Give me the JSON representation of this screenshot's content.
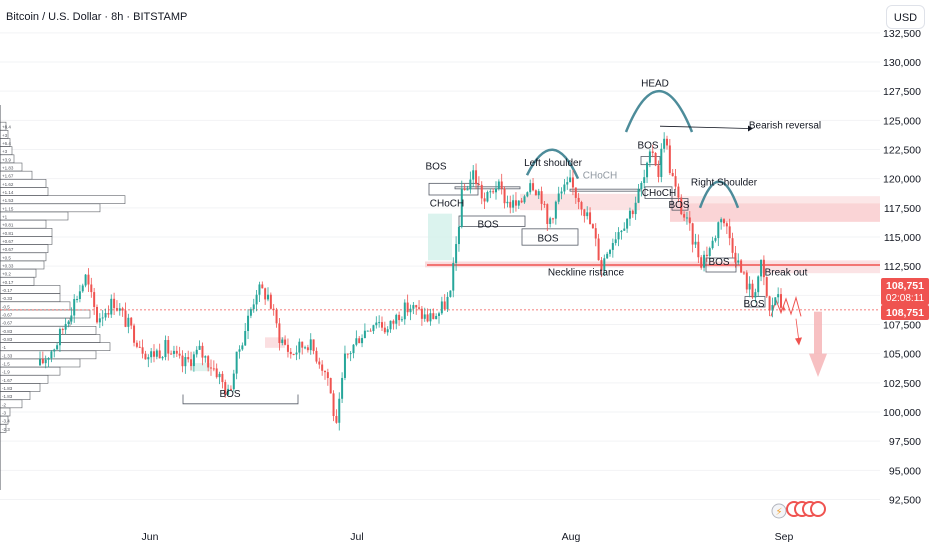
{
  "header": {
    "title": "Bitcoin / U.S. Dollar · 8h · BITSTAMP",
    "currency_button": "USD"
  },
  "price_labels": {
    "last_price": "108,751",
    "countdown": "02:08:11",
    "second_price": "108,751"
  },
  "colors": {
    "up": "#26a69a",
    "down": "#ef5350",
    "pattern": "#4d8c9a",
    "resistance": "#ef5350",
    "zone": "#f9c9cc",
    "vp_bar": "#d7dadf"
  },
  "chart_data": {
    "type": "candlestick",
    "symbol": "Bitcoin / U.S. Dollar",
    "timeframe": "8h",
    "exchange": "BITSTAMP",
    "x_ticks": [
      "Jun",
      "Jul",
      "Aug",
      "Sep"
    ],
    "y_ticks": [
      92500,
      95000,
      97500,
      100000,
      102500,
      105000,
      107500,
      110000,
      112500,
      115000,
      117500,
      120000,
      122500,
      125000,
      127500,
      130000,
      132500
    ],
    "ylim": [
      91000,
      133500
    ],
    "last_price": 108751,
    "price_path": [
      [
        0,
        104000
      ],
      [
        6,
        106000
      ],
      [
        12,
        109500
      ],
      [
        16,
        111500
      ],
      [
        20,
        108000
      ],
      [
        26,
        109500
      ],
      [
        32,
        107000
      ],
      [
        38,
        104800
      ],
      [
        44,
        105500
      ],
      [
        50,
        104000
      ],
      [
        56,
        105200
      ],
      [
        62,
        103500
      ],
      [
        66,
        101500
      ],
      [
        70,
        105500
      ],
      [
        76,
        110500
      ],
      [
        80,
        110000
      ],
      [
        84,
        106500
      ],
      [
        88,
        105000
      ],
      [
        94,
        106000
      ],
      [
        98,
        104500
      ],
      [
        101,
        103000
      ],
      [
        104,
        98500
      ],
      [
        107,
        104500
      ],
      [
        112,
        106500
      ],
      [
        118,
        108000
      ],
      [
        122,
        107000
      ],
      [
        126,
        108500
      ],
      [
        130,
        109000
      ],
      [
        136,
        108000
      ],
      [
        140,
        108500
      ],
      [
        144,
        110000
      ],
      [
        148,
        118500
      ],
      [
        152,
        120500
      ],
      [
        156,
        118000
      ],
      [
        160,
        119500
      ],
      [
        164,
        118000
      ],
      [
        168,
        117500
      ],
      [
        172,
        120000
      ],
      [
        176,
        118500
      ],
      [
        178,
        116000
      ],
      [
        182,
        118500
      ],
      [
        186,
        119500
      ],
      [
        190,
        118000
      ],
      [
        194,
        115500
      ],
      [
        197,
        112500
      ],
      [
        200,
        114500
      ],
      [
        204,
        116000
      ],
      [
        208,
        117500
      ],
      [
        212,
        120000
      ],
      [
        215,
        122500
      ],
      [
        217,
        120500
      ],
      [
        219,
        124000
      ],
      [
        221,
        121000
      ],
      [
        224,
        118000
      ],
      [
        228,
        115500
      ],
      [
        232,
        113000
      ],
      [
        236,
        114500
      ],
      [
        239,
        117000
      ],
      [
        242,
        115000
      ],
      [
        246,
        112000
      ],
      [
        250,
        110000
      ],
      [
        253,
        112500
      ],
      [
        256,
        108500
      ],
      [
        258,
        110000
      ],
      [
        261,
        108751
      ]
    ],
    "volume_profile": [
      {
        "price": 124500,
        "label": "+8.4",
        "width": 6
      },
      {
        "price": 123800,
        "label": "+3",
        "width": 8
      },
      {
        "price": 123100,
        "label": "+6.4",
        "width": 10
      },
      {
        "price": 122400,
        "label": "+3",
        "width": 12
      },
      {
        "price": 121700,
        "label": "+3.9",
        "width": 14
      },
      {
        "price": 121000,
        "label": "+1.83",
        "width": 22
      },
      {
        "price": 120300,
        "label": "+1.67",
        "width": 32
      },
      {
        "price": 119600,
        "label": "+1.62",
        "width": 46
      },
      {
        "price": 118900,
        "label": "+1.14",
        "width": 48
      },
      {
        "price": 118200,
        "label": "+1.53",
        "width": 125
      },
      {
        "price": 117500,
        "label": "+1.15",
        "width": 100
      },
      {
        "price": 116800,
        "label": "+1",
        "width": 68
      },
      {
        "price": 116100,
        "label": "+0.81",
        "width": 46
      },
      {
        "price": 115400,
        "label": "+0.81",
        "width": 52
      },
      {
        "price": 114700,
        "label": "+0.67",
        "width": 52
      },
      {
        "price": 114000,
        "label": "+0.67",
        "width": 48
      },
      {
        "price": 113300,
        "label": "+0.5",
        "width": 46
      },
      {
        "price": 112600,
        "label": "+0.33",
        "width": 44
      },
      {
        "price": 111900,
        "label": "+0.2",
        "width": 36
      },
      {
        "price": 111200,
        "label": "+0.17",
        "width": 34
      },
      {
        "price": 110500,
        "label": "-0.17",
        "width": 60
      },
      {
        "price": 109800,
        "label": "-0.33",
        "width": 60
      },
      {
        "price": 109100,
        "label": "-0.5",
        "width": 70
      },
      {
        "price": 108400,
        "label": "-0.67",
        "width": 90
      },
      {
        "price": 107700,
        "label": "-0.67",
        "width": 70
      },
      {
        "price": 107000,
        "label": "-0.83",
        "width": 96
      },
      {
        "price": 106300,
        "label": "-0.83",
        "width": 100
      },
      {
        "price": 105600,
        "label": "-1",
        "width": 110
      },
      {
        "price": 104900,
        "label": "-1.33",
        "width": 96
      },
      {
        "price": 104200,
        "label": "-1.5",
        "width": 80
      },
      {
        "price": 103500,
        "label": "-1.9",
        "width": 60
      },
      {
        "price": 102800,
        "label": "-1.67",
        "width": 48
      },
      {
        "price": 102100,
        "label": "-1.83",
        "width": 40
      },
      {
        "price": 101400,
        "label": "-1.83",
        "width": 30
      },
      {
        "price": 100700,
        "label": "-2",
        "width": 22
      },
      {
        "price": 100000,
        "label": "-3",
        "width": 10
      },
      {
        "price": 99300,
        "label": "-3.4",
        "width": 8
      },
      {
        "price": 98600,
        "label": "-2.3",
        "width": 6
      }
    ],
    "annotations": [
      {
        "text": "BOS",
        "x": 230,
        "price": 101300,
        "color": "#131722"
      },
      {
        "text": "BOS",
        "x": 436,
        "price": 120800,
        "color": "#131722"
      },
      {
        "text": "CHoCH",
        "x": 447,
        "price": 117600,
        "color": "#131722"
      },
      {
        "text": "BOS",
        "x": 488,
        "price": 115800,
        "color": "#131722"
      },
      {
        "text": "Left shoulder",
        "x": 553,
        "price": 121100,
        "color": "#131722"
      },
      {
        "text": "CHoCH",
        "x": 600,
        "price": 120000,
        "color": "#9098a1"
      },
      {
        "text": "BOS",
        "x": 548,
        "price": 114600,
        "color": "#131722"
      },
      {
        "text": "Neckline ristance",
        "x": 586,
        "price": 111700,
        "color": "#131722"
      },
      {
        "text": "HEAD",
        "x": 655,
        "price": 127900,
        "color": "#131722"
      },
      {
        "text": "BOS",
        "x": 648,
        "price": 122600,
        "color": "#131722"
      },
      {
        "text": "CHoCH",
        "x": 659,
        "price": 118500,
        "color": "#131722"
      },
      {
        "text": "BOS",
        "x": 679,
        "price": 117500,
        "color": "#131722"
      },
      {
        "text": "Bearish reversal",
        "x": 785,
        "price": 124300,
        "color": "#131722"
      },
      {
        "text": "Right Shoulder",
        "x": 724,
        "price": 119400,
        "color": "#131722"
      },
      {
        "text": "BOS",
        "x": 719,
        "price": 112600,
        "color": "#131722"
      },
      {
        "text": "Break out",
        "x": 786,
        "price": 111700,
        "color": "#131722"
      },
      {
        "text": "BOS",
        "x": 754,
        "price": 109000,
        "color": "#131722"
      }
    ]
  }
}
